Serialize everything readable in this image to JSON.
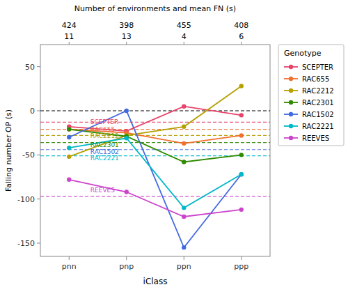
{
  "chart_data": {
    "type": "line",
    "categories": [
      "pnn",
      "pnp",
      "ppn",
      "ppp"
    ],
    "xlabel": "iClass",
    "ylabel": "Falling number OP (s)",
    "top_axis_title": "Number of environments and mean FN (s)",
    "top_labels_row1": [
      "11",
      "13",
      "4",
      "6"
    ],
    "top_labels_row2": [
      "424",
      "398",
      "455",
      "408"
    ],
    "series": [
      {
        "name": "SCEPTER",
        "color": "#e8436a",
        "values": [
          -18,
          -23,
          5,
          -5
        ],
        "mean": -13
      },
      {
        "name": "RAC655",
        "color": "#f07030",
        "values": [
          -21,
          -25,
          -37,
          -28
        ],
        "mean": -21
      },
      {
        "name": "RAC2212",
        "color": "#b5a000",
        "values": [
          -52,
          -28,
          -18,
          28
        ],
        "mean": -28
      },
      {
        "name": "RAC2301",
        "color": "#2e8b00",
        "values": [
          -21,
          -29,
          -58,
          -50
        ],
        "mean": -36
      },
      {
        "name": "RAC1502",
        "color": "#4169e1",
        "values": [
          -30,
          0,
          -155,
          -72
        ],
        "mean": -44
      },
      {
        "name": "RAC2221",
        "color": "#00b8c8",
        "values": [
          -42,
          -31,
          -110,
          -72
        ],
        "mean": -51
      },
      {
        "name": "REEVES",
        "color": "#cc44cc",
        "values": [
          -78,
          -92,
          -120,
          -112
        ],
        "mean": -97
      }
    ],
    "annotations": [
      {
        "text": "SCEPTER",
        "y": -13
      },
      {
        "text": "RAC655",
        "y": -22
      },
      {
        "text": "RAC2212",
        "y": -29
      },
      {
        "text": "RAC2301",
        "y": -39
      },
      {
        "text": "RAC1502",
        "y": -47
      },
      {
        "text": "RAC2221",
        "y": -54
      },
      {
        "text": "REEVES",
        "y": -90
      }
    ],
    "reference_line": 0,
    "ylim": [
      -165,
      75
    ],
    "yticks": [
      -150,
      -100,
      -50,
      0,
      50
    ],
    "marker": "circle",
    "grid": false,
    "legend": "right",
    "legend_title": "Genotype"
  }
}
